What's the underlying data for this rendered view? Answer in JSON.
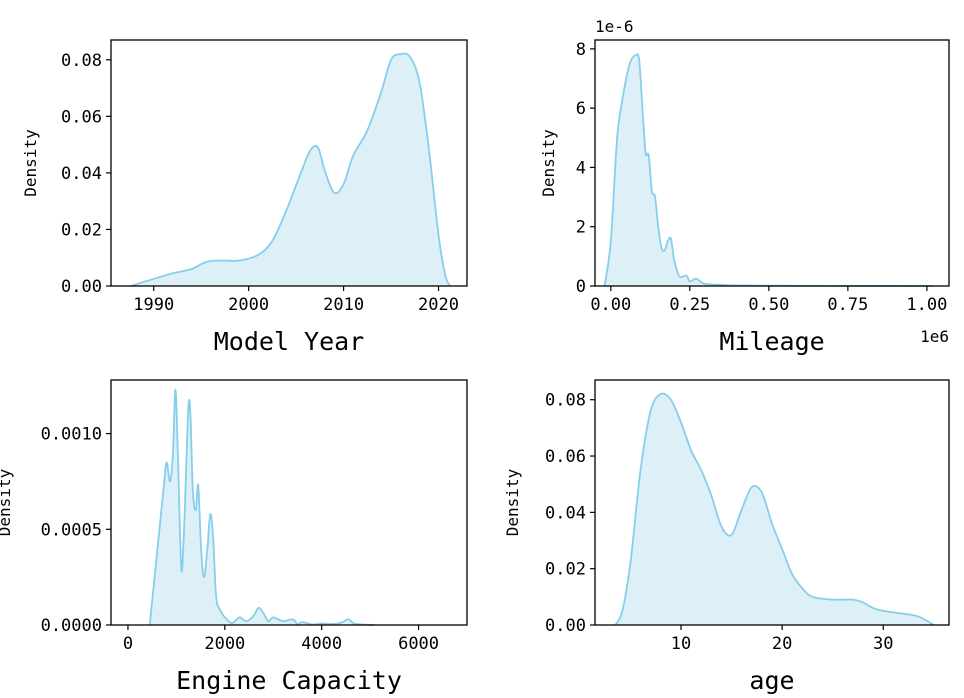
{
  "colors": {
    "line": "#87CEEB",
    "fill": "#DDF0F8"
  },
  "chart_data": [
    {
      "type": "area",
      "title": "",
      "xlabel": "Model Year",
      "ylabel": "Density",
      "offset_label": "",
      "xlim": [
        1985.5,
        2023
      ],
      "ylim": [
        0,
        0.087
      ],
      "xticks": [
        1990,
        2000,
        2010,
        2020
      ],
      "xtick_labels": [
        "1990",
        "2000",
        "2010",
        "2020"
      ],
      "yticks": [
        0,
        0.02,
        0.04,
        0.06,
        0.08
      ],
      "ytick_labels": [
        "0.00",
        "0.02",
        "0.04",
        "0.06",
        "0.08"
      ],
      "x": [
        1987.6,
        1989,
        1990.5,
        1992,
        1994,
        1995.5,
        1997,
        1999,
        2001,
        2002.5,
        2004,
        2005.5,
        2006.5,
        2007.3,
        2008,
        2009,
        2010,
        2011,
        2012.5,
        2014,
        2015,
        2016,
        2017,
        2018,
        2019,
        2020,
        2020.7,
        2021.2
      ],
      "y": [
        0,
        0.0015,
        0.003,
        0.0045,
        0.006,
        0.0085,
        0.009,
        0.009,
        0.011,
        0.016,
        0.027,
        0.04,
        0.048,
        0.049,
        0.041,
        0.033,
        0.036,
        0.046,
        0.055,
        0.069,
        0.08,
        0.082,
        0.081,
        0.072,
        0.048,
        0.018,
        0.004,
        0
      ]
    },
    {
      "type": "area",
      "title": "",
      "xlabel": "Mileage",
      "ylabel": "Density",
      "offset_label": "1e-6",
      "x_offset_label": "1e6",
      "xlim": [
        -0.05,
        1.07
      ],
      "ylim": [
        0,
        8.3
      ],
      "xticks": [
        0,
        0.25,
        0.5,
        0.75,
        1.0
      ],
      "xtick_labels": [
        "0.00",
        "0.25",
        "0.50",
        "0.75",
        "1.00"
      ],
      "yticks": [
        0,
        2,
        4,
        6,
        8
      ],
      "ytick_labels": [
        "0",
        "2",
        "4",
        "6",
        "8"
      ],
      "x": [
        -0.02,
        0,
        0.02,
        0.04,
        0.06,
        0.08,
        0.09,
        0.1,
        0.11,
        0.12,
        0.13,
        0.14,
        0.15,
        0.16,
        0.17,
        0.18,
        0.19,
        0.2,
        0.21,
        0.22,
        0.24,
        0.25,
        0.27,
        0.29,
        0.31,
        0.35,
        0.4,
        0.5,
        0.7,
        1.02
      ],
      "y": [
        0,
        1.5,
        5.0,
        6.5,
        7.5,
        7.8,
        7.6,
        6.0,
        4.5,
        4.4,
        3.2,
        3.0,
        2.0,
        1.3,
        1.2,
        1.5,
        1.6,
        0.9,
        0.5,
        0.3,
        0.35,
        0.15,
        0.25,
        0.1,
        0.06,
        0.04,
        0.02,
        0.01,
        0.005,
        0
      ]
    },
    {
      "type": "area",
      "title": "",
      "xlabel": "Engine Capacity",
      "ylabel": "Density",
      "offset_label": "",
      "xlim": [
        -350,
        7000
      ],
      "ylim": [
        0,
        0.00128
      ],
      "xticks": [
        0,
        2000,
        4000,
        6000
      ],
      "xtick_labels": [
        "0",
        "2000",
        "4000",
        "6000"
      ],
      "yticks": [
        0,
        0.0005,
        0.001
      ],
      "ytick_labels": [
        "0.0000",
        "0.0005",
        "0.0010"
      ],
      "x": [
        450,
        550,
        650,
        750,
        800,
        870,
        930,
        980,
        1030,
        1100,
        1150,
        1200,
        1250,
        1290,
        1340,
        1400,
        1450,
        1510,
        1570,
        1640,
        1700,
        1760,
        1820,
        1900,
        2000,
        2150,
        2300,
        2450,
        2600,
        2700,
        2800,
        2900,
        3000,
        3200,
        3400,
        3500,
        3600,
        3800,
        4000,
        4200,
        4400,
        4550,
        4650,
        4800,
        5100
      ],
      "y": [
        0,
        0.00025,
        0.0005,
        0.00075,
        0.00085,
        0.00075,
        0.0009,
        0.00123,
        0.0009,
        0.0003,
        0.00045,
        0.0008,
        0.00115,
        0.0011,
        0.0007,
        0.0006,
        0.00073,
        0.0004,
        0.00025,
        0.0004,
        0.00058,
        0.00045,
        0.00015,
        8e-05,
        4e-05,
        1e-05,
        4e-05,
        2e-05,
        5e-05,
        9e-05,
        6e-05,
        2e-05,
        4e-05,
        2e-05,
        3e-05,
        5e-06,
        1.5e-05,
        3e-06,
        8e-06,
        5e-06,
        1.2e-05,
        3e-05,
        1e-05,
        3e-06,
        0
      ]
    },
    {
      "type": "area",
      "title": "",
      "xlabel": "age",
      "ylabel": "Density",
      "offset_label": "",
      "xlim": [
        1.5,
        36.5
      ],
      "ylim": [
        0,
        0.087
      ],
      "xticks": [
        10,
        20,
        30
      ],
      "xtick_labels": [
        "10",
        "20",
        "30"
      ],
      "yticks": [
        0,
        0.02,
        0.04,
        0.06,
        0.08
      ],
      "ytick_labels": [
        "0.00",
        "0.02",
        "0.04",
        "0.06",
        "0.08"
      ],
      "x": [
        3.5,
        4.2,
        5,
        6,
        7,
        8,
        9,
        10,
        11,
        12,
        13,
        14,
        15,
        16,
        17,
        18,
        19,
        20,
        21,
        22,
        23,
        25,
        27,
        28,
        29,
        30,
        32,
        33.5,
        35
      ],
      "y": [
        0,
        0.005,
        0.022,
        0.055,
        0.076,
        0.082,
        0.08,
        0.072,
        0.062,
        0.055,
        0.046,
        0.035,
        0.032,
        0.041,
        0.049,
        0.047,
        0.036,
        0.027,
        0.018,
        0.013,
        0.01,
        0.009,
        0.009,
        0.008,
        0.006,
        0.005,
        0.004,
        0.003,
        0
      ]
    }
  ]
}
